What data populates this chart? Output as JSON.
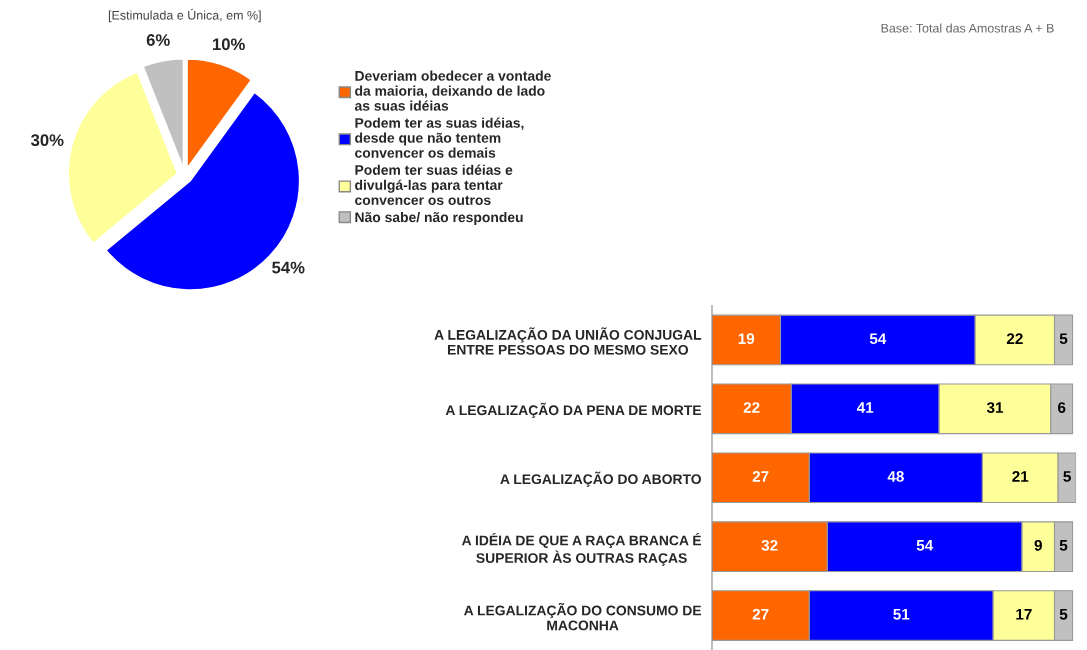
{
  "chart_data": [
    {
      "type": "pie",
      "title": "[Estimulada e Única, em %]",
      "categories": [
        "Deveriam obedecer a vontade da maioria, deixando de lado as suas idéias",
        "Podem ter as suas idéias, desde que não tentem convencer os demais",
        "Podem ter suas idéias e divulgá-las para tentar convencer os outros",
        "Não sabe/ não respondeu"
      ],
      "values": [
        10,
        54,
        30,
        6
      ],
      "colors": [
        "#ff6600",
        "#0000ff",
        "#ffff99",
        "#c0c0c0"
      ],
      "value_labels": [
        "10%",
        "54%",
        "30%",
        "6%"
      ],
      "legend": "right",
      "annotations": [
        "Base: Total das Amostras A + B"
      ]
    },
    {
      "type": "bar",
      "orientation": "horizontal",
      "stacked": true,
      "data_labels": true,
      "tick_labels": "y",
      "categories": [
        "A LEGALIZAÇÃO DA UNIÃO CONJUGAL ENTRE PESSOAS DO MESMO SEXO",
        "A LEGALIZAÇÃO DA PENA DE MORTE",
        "A LEGALIZAÇÃO DO ABORTO",
        "A IDÉIA DE QUE A RAÇA BRANCA É SUPERIOR ÀS OUTRAS RAÇAS",
        "A LEGALIZAÇÃO DO CONSUMO DE MACONHA"
      ],
      "series": [
        {
          "color": "#ff6600",
          "values": [
            19,
            22,
            27,
            32,
            27
          ]
        },
        {
          "color": "#0000ff",
          "values": [
            54,
            41,
            48,
            54,
            51
          ]
        },
        {
          "color": "#ffff99",
          "values": [
            22,
            31,
            21,
            9,
            17
          ]
        },
        {
          "color": "#c0c0c0",
          "values": [
            5,
            6,
            5,
            5,
            5
          ]
        }
      ]
    }
  ]
}
